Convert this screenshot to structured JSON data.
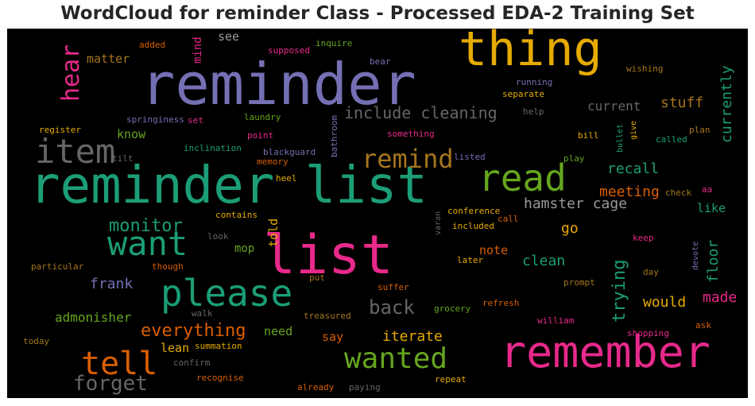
{
  "title": "WordCloud for reminder Class - Processed EDA-2 Training Set",
  "palette": {
    "purple": "#7570b3",
    "teal": "#1b9e77",
    "magenta": "#e7298a",
    "orange": "#d95f02",
    "green": "#66a61e",
    "gold": "#e6ab02",
    "brown": "#a6761d",
    "gray": "#666666"
  },
  "words": {
    "reminder": "reminder",
    "reminder_list": "reminder list",
    "list": "list",
    "thing": "thing",
    "remember": "remember",
    "read": "read",
    "please": "please",
    "want": "want",
    "item": "item",
    "wanted": "wanted",
    "tell": "tell",
    "remind": "remind",
    "hear": "hear",
    "forget": "forget",
    "include_cleaning": "include cleaning",
    "monitor": "monitor",
    "everything": "everything",
    "back": "back",
    "hamster_cage": "hamster cage",
    "meeting": "meeting",
    "recall": "recall",
    "trying": "trying",
    "stuff": "stuff",
    "currently": "currently",
    "iterate": "iterate",
    "made": "made",
    "would": "would",
    "clean": "clean",
    "floor": "floor",
    "current": "current",
    "go": "go",
    "frank": "frank",
    "admonisher": "admonisher",
    "see": "see",
    "matter": "matter",
    "mind": "mind",
    "know": "know",
    "told": "told",
    "need": "need",
    "lean": "lean",
    "say": "say",
    "like": "like",
    "note": "note",
    "mop": "mop",
    "added": "added",
    "supposed": "supposed",
    "inquire": "inquire",
    "bear": "bear",
    "wishing": "wishing",
    "running": "running",
    "separate": "separate",
    "help": "help",
    "springiness": "springiness",
    "set": "set",
    "laundry": "laundry",
    "bathroom": "bathroom",
    "something": "something",
    "register": "register",
    "point": "point",
    "bill": "bill",
    "bullet": "bullet",
    "give": "give",
    "plan": "plan",
    "called": "called",
    "inclination": "inclination",
    "blackguard": "blackguard",
    "memory": "memory",
    "listed": "listed",
    "play": "play",
    "tilt": "tilt",
    "heel": "heel",
    "check": "check",
    "aa": "aa",
    "contains": "contains",
    "conference": "conference",
    "call": "call",
    "varan": "varan",
    "included": "included",
    "look": "look",
    "keep": "keep",
    "devote": "devote",
    "particular": "particular",
    "though": "though",
    "later": "later",
    "day": "day",
    "put": "put",
    "suffer": "suffer",
    "prompt": "prompt",
    "walk": "walk",
    "treasured": "treasured",
    "grocery": "grocery",
    "refresh": "refresh",
    "william": "william",
    "ask": "ask",
    "shopping": "shopping",
    "today": "today",
    "summation": "summation",
    "confirm": "confirm",
    "recognise": "recognise",
    "repeat": "repeat",
    "already": "already",
    "paying": "paying"
  }
}
